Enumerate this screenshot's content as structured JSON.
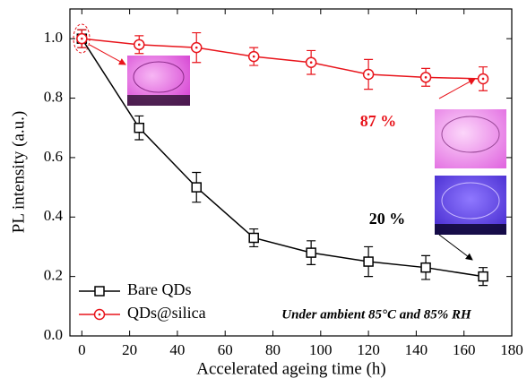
{
  "chart_data": {
    "type": "line",
    "x_label": "Accelerated ageing time (h)",
    "y_label": "PL intensity (a.u.)",
    "x": [
      0,
      24,
      48,
      72,
      96,
      120,
      144,
      168
    ],
    "series": [
      {
        "name": "Bare QDs",
        "color": "#000000",
        "marker": "square",
        "values": [
          1.0,
          0.7,
          0.5,
          0.33,
          0.28,
          0.25,
          0.23,
          0.2
        ],
        "errors": [
          0.03,
          0.04,
          0.05,
          0.03,
          0.04,
          0.05,
          0.04,
          0.03
        ]
      },
      {
        "name": "QDs@silica",
        "color": "#e8141b",
        "marker": "circle",
        "values": [
          1.0,
          0.98,
          0.97,
          0.94,
          0.92,
          0.88,
          0.87,
          0.865
        ],
        "errors": [
          0.03,
          0.03,
          0.05,
          0.03,
          0.04,
          0.05,
          0.03,
          0.04
        ]
      }
    ],
    "xlim": [
      -5,
      180
    ],
    "xticks": [
      0,
      20,
      40,
      60,
      80,
      100,
      120,
      140,
      160,
      180
    ],
    "ylim": [
      0,
      1.1
    ],
    "yticks": [
      {
        "value": 0,
        "label": "0.0"
      },
      0.2,
      0.4,
      0.6,
      0.8,
      {
        "value": 1,
        "label": "1.0"
      }
    ],
    "legend": "lower left",
    "annotations": [
      "87 %",
      "20 %",
      "Under ambient 85°C and 85% RH"
    ]
  }
}
